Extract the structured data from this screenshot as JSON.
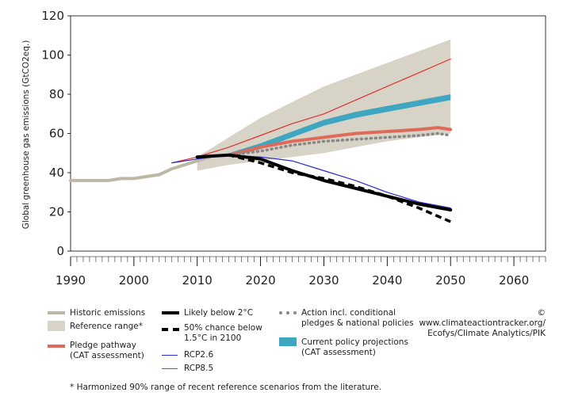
{
  "chart_data": {
    "type": "line",
    "xlabel": "",
    "ylabel": "Global greenhouse gas emissions (GtCO2eq.)",
    "xlim": [
      1990,
      2065
    ],
    "ylim": [
      0,
      120
    ],
    "xticks": [
      "1990",
      "2000",
      "2010",
      "2020",
      "2030",
      "2040",
      "2050",
      "2060"
    ],
    "yticks": [
      "0",
      "20",
      "40",
      "60",
      "80",
      "100",
      "120"
    ],
    "grid": false,
    "legend_position": "bottom",
    "series": [
      {
        "name": "Historic emissions",
        "style": "thick solid",
        "color": "#bdb7a6",
        "x": [
          1990,
          1992,
          1994,
          1996,
          1998,
          2000,
          2002,
          2004,
          2006,
          2008,
          2010,
          2012
        ],
        "y": [
          36,
          36,
          36,
          36,
          37,
          37,
          38,
          39,
          42,
          44,
          46,
          48
        ]
      },
      {
        "name": "Reference range*",
        "style": "band",
        "color": "#d7d3c6",
        "x": [
          2010,
          2015,
          2020,
          2025,
          2030,
          2035,
          2040,
          2045,
          2050
        ],
        "low": [
          41,
          44,
          46,
          48,
          50,
          53,
          56,
          58,
          60
        ],
        "high": [
          48,
          58,
          68,
          76,
          84,
          90,
          96,
          102,
          108
        ]
      },
      {
        "name": "Pledge pathway (CAT assessment)",
        "style": "thick solid",
        "color": "#e06a5a",
        "x": [
          2015,
          2020,
          2025,
          2030,
          2035,
          2040,
          2045,
          2048,
          2050
        ],
        "y": [
          49,
          53,
          56,
          58,
          60,
          61,
          62,
          63,
          62
        ]
      },
      {
        "name": "RCP2.6",
        "style": "thin solid",
        "color": "#2a2acf",
        "x": [
          2006,
          2010,
          2015,
          2020,
          2025,
          2030,
          2035,
          2040,
          2045,
          2050
        ],
        "y": [
          45,
          47,
          49,
          48,
          46,
          41,
          36,
          30,
          25,
          22
        ]
      },
      {
        "name": "RCP8.5",
        "style": "thin solid",
        "color": "#e23030",
        "x": [
          2006,
          2010,
          2015,
          2020,
          2025,
          2030,
          2035,
          2040,
          2045,
          2050
        ],
        "y": [
          45,
          48,
          53,
          59,
          65,
          70,
          77,
          84,
          91,
          98
        ]
      },
      {
        "name": "Likely below 2°C",
        "style": "thick solid",
        "color": "#000000",
        "x": [
          2010,
          2015,
          2020,
          2025,
          2030,
          2035,
          2040,
          2045,
          2050
        ],
        "y": [
          48,
          49,
          47,
          41,
          36,
          32,
          28,
          24,
          21
        ]
      },
      {
        "name": "50% chance below 1.5°C in 2100",
        "style": "thick dashed",
        "color": "#000000",
        "x": [
          2010,
          2015,
          2020,
          2025,
          2030,
          2035,
          2040,
          2045,
          2050
        ],
        "y": [
          48,
          49,
          45,
          40,
          37,
          33,
          28,
          22,
          15
        ]
      },
      {
        "name": "Action incl. conditional pledges & national policies",
        "style": "dotted",
        "color": "#888888",
        "x": [
          2015,
          2020,
          2025,
          2030,
          2035,
          2040,
          2045,
          2048,
          2050
        ],
        "y": [
          49,
          51,
          54,
          56,
          57,
          58,
          59,
          60,
          59
        ]
      },
      {
        "name": "Current policy projections (CAT assessment)",
        "style": "band",
        "color": "#3ea6c0",
        "x": [
          2015,
          2020,
          2025,
          2030,
          2035,
          2040,
          2045,
          2050
        ],
        "low": [
          48,
          52,
          58,
          64,
          68,
          71,
          74,
          77
        ],
        "high": [
          50,
          55,
          61,
          67,
          71,
          74,
          77,
          80
        ]
      }
    ]
  },
  "legend": {
    "historic": "Historic emissions",
    "reference": "Reference range*",
    "pledge_1": "Pledge pathway",
    "pledge_2": "(CAT assessment)",
    "rcp26": "RCP2.6",
    "rcp85": "RCP8.5",
    "likely2": "Likely below 2°C",
    "chance15_1": "50% chance below",
    "chance15_2": "1.5°C in 2100",
    "action_1": "Action incl. conditional",
    "action_2": "pledges & national policies",
    "current_1": "Current policy projections",
    "current_2": "(CAT assessment)",
    "credit_1": "© www.climateactiontracker.org/",
    "credit_2": "Ecofys/Climate Analytics/PIK"
  },
  "footnote": "*  Harmonized 90% range of recent reference scenarios from the literature."
}
